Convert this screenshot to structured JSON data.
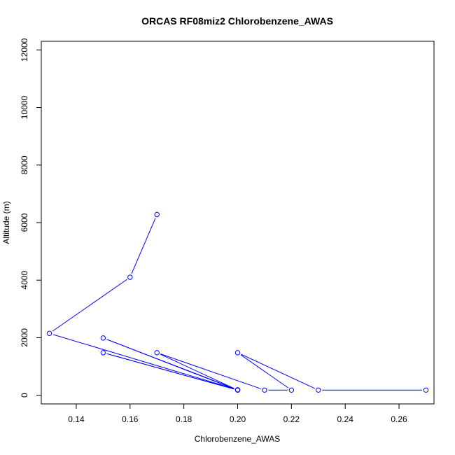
{
  "chart_data": {
    "type": "line",
    "title": "ORCAS RF08miz2 Chlorobenzene_AWAS",
    "xlabel": "Chlorobenzene_AWAS",
    "ylabel": "Altitude (m)",
    "xlim": [
      0.127,
      0.273
    ],
    "ylim": [
      -300,
      12300
    ],
    "x_ticks": [
      0.14,
      0.16,
      0.18,
      0.2,
      0.22,
      0.24,
      0.26
    ],
    "x_tick_labels": [
      "0.14",
      "0.16",
      "0.18",
      "0.20",
      "0.22",
      "0.24",
      "0.26"
    ],
    "y_ticks": [
      0,
      2000,
      4000,
      6000,
      8000,
      10000,
      12000
    ],
    "y_tick_labels": [
      "0",
      "2000",
      "4000",
      "6000",
      "8000",
      "10000",
      "12000"
    ],
    "grid": false,
    "color": "#0000ff",
    "series": [
      {
        "x": [
          0.17,
          0.16,
          0.13,
          0.2,
          0.15,
          0.2,
          0.15,
          0.2,
          0.17,
          0.21,
          0.22,
          0.2,
          0.23,
          0.27
        ],
        "y": [
          6280,
          4100,
          2150,
          190,
          1990,
          180,
          1480,
          180,
          1480,
          180,
          180,
          1480,
          180,
          180
        ]
      }
    ]
  }
}
